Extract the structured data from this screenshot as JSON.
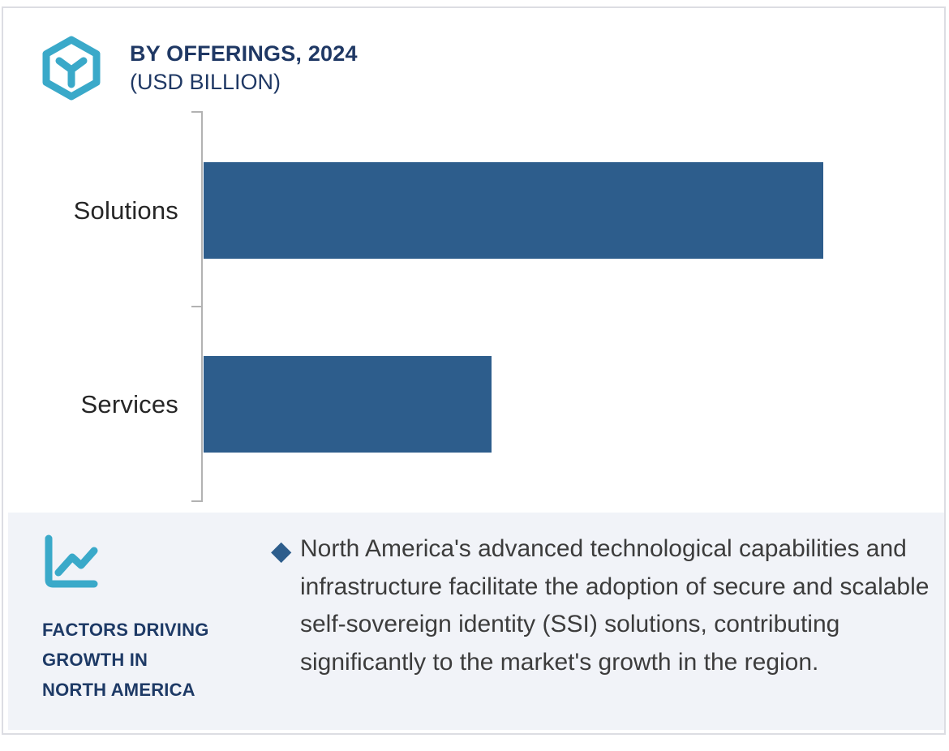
{
  "header": {
    "title_line1": "BY OFFERINGS, 2024",
    "title_line2": "(USD BILLION)",
    "logo_icon": "hexagon-cube-icon"
  },
  "chart_data": {
    "type": "bar",
    "orientation": "horizontal",
    "title": "BY OFFERINGS, 2024 (USD BILLION)",
    "categories": [
      "Solutions",
      "Services"
    ],
    "values": [
      100,
      46.5
    ],
    "value_scale": "relative length, no numeric axis or data labels shown",
    "xlabel": "",
    "ylabel": "",
    "grid": false,
    "legend": false,
    "bar_color": "#2d5d8c",
    "axis_color": "#b2b2b2",
    "label_color": "#262626"
  },
  "factors_panel": {
    "icon": "line-chart-icon",
    "heading_lines": [
      "FACTORS DRIVING",
      "GROWTH IN",
      "NORTH AMERICA"
    ],
    "bullet_glyph": "◆",
    "text": "North America's advanced technological capabilities and infrastructure facilitate the adoption of secure and scalable self-sovereign identity (SSI) solutions, contributing significantly to the market's growth in the region.",
    "background": "#f1f3f8",
    "heading_color": "#1e3a66",
    "text_color": "#3c3c3c",
    "bullet_color": "#2d5d8c"
  },
  "colors": {
    "accent_teal": "#3aa9c9",
    "navy": "#1f3864",
    "bar_blue": "#2d5d8c",
    "frame_border": "#dcdde3"
  }
}
